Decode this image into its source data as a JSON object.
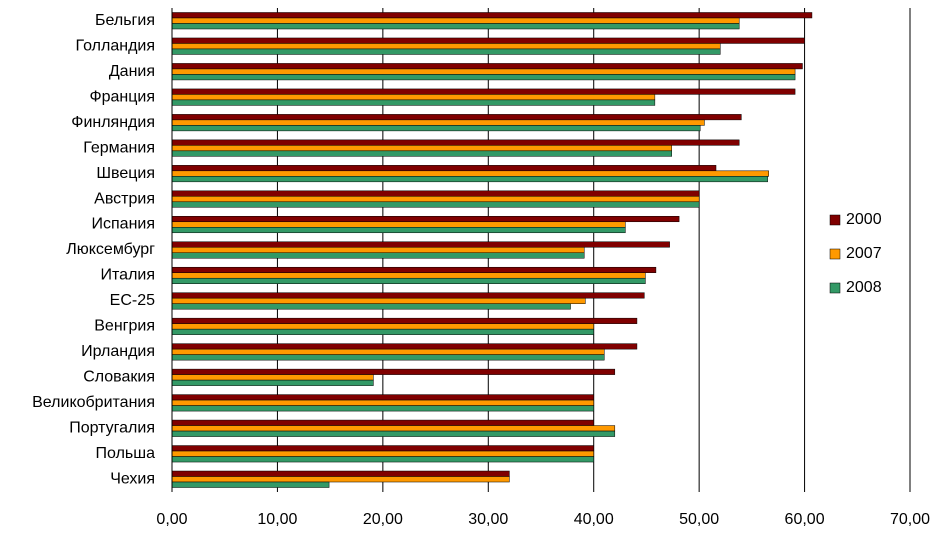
{
  "chart_data": {
    "type": "bar",
    "orientation": "horizontal",
    "categories": [
      "Бельгия",
      "Голландия",
      "Дания",
      "Франция",
      "Финляндия",
      "Германия",
      "Швеция",
      "Австрия",
      "Испания",
      "Люксембург",
      "Италия",
      "ЕС-25",
      "Венгрия",
      "Ирландия",
      "Словакия",
      "Великобритания",
      "Португалия",
      "Польша",
      "Чехия"
    ],
    "series": [
      {
        "name": "2000",
        "color": "#800000",
        "values": [
          60.7,
          60.0,
          59.8,
          59.1,
          54.0,
          53.8,
          51.6,
          50.0,
          48.1,
          47.2,
          45.9,
          44.8,
          44.1,
          44.1,
          42.0,
          40.0,
          40.0,
          40.0,
          32.0
        ]
      },
      {
        "name": "2007",
        "color": "#ff9900",
        "values": [
          53.8,
          52.0,
          59.1,
          45.8,
          50.5,
          47.4,
          56.6,
          50.0,
          43.0,
          39.1,
          44.9,
          39.2,
          40.0,
          41.0,
          19.1,
          40.0,
          42.0,
          40.0,
          32.0
        ]
      },
      {
        "name": "2008",
        "color": "#339966",
        "values": [
          53.8,
          52.0,
          59.1,
          45.8,
          50.1,
          47.4,
          56.5,
          50.0,
          43.0,
          39.1,
          44.9,
          37.8,
          40.0,
          41.0,
          19.1,
          40.0,
          42.0,
          40.0,
          14.9
        ]
      }
    ],
    "xlim": [
      0,
      70
    ],
    "xticks": [
      {
        "value": 0,
        "label": "0,00"
      },
      {
        "value": 10,
        "label": "10,00"
      },
      {
        "value": 20,
        "label": "20,00"
      },
      {
        "value": 30,
        "label": "30,00"
      },
      {
        "value": 40,
        "label": "40,00"
      },
      {
        "value": 50,
        "label": "50,00"
      },
      {
        "value": 60,
        "label": "60,00"
      },
      {
        "value": 70,
        "label": "70,00"
      }
    ],
    "grid": true,
    "legend": "right"
  }
}
